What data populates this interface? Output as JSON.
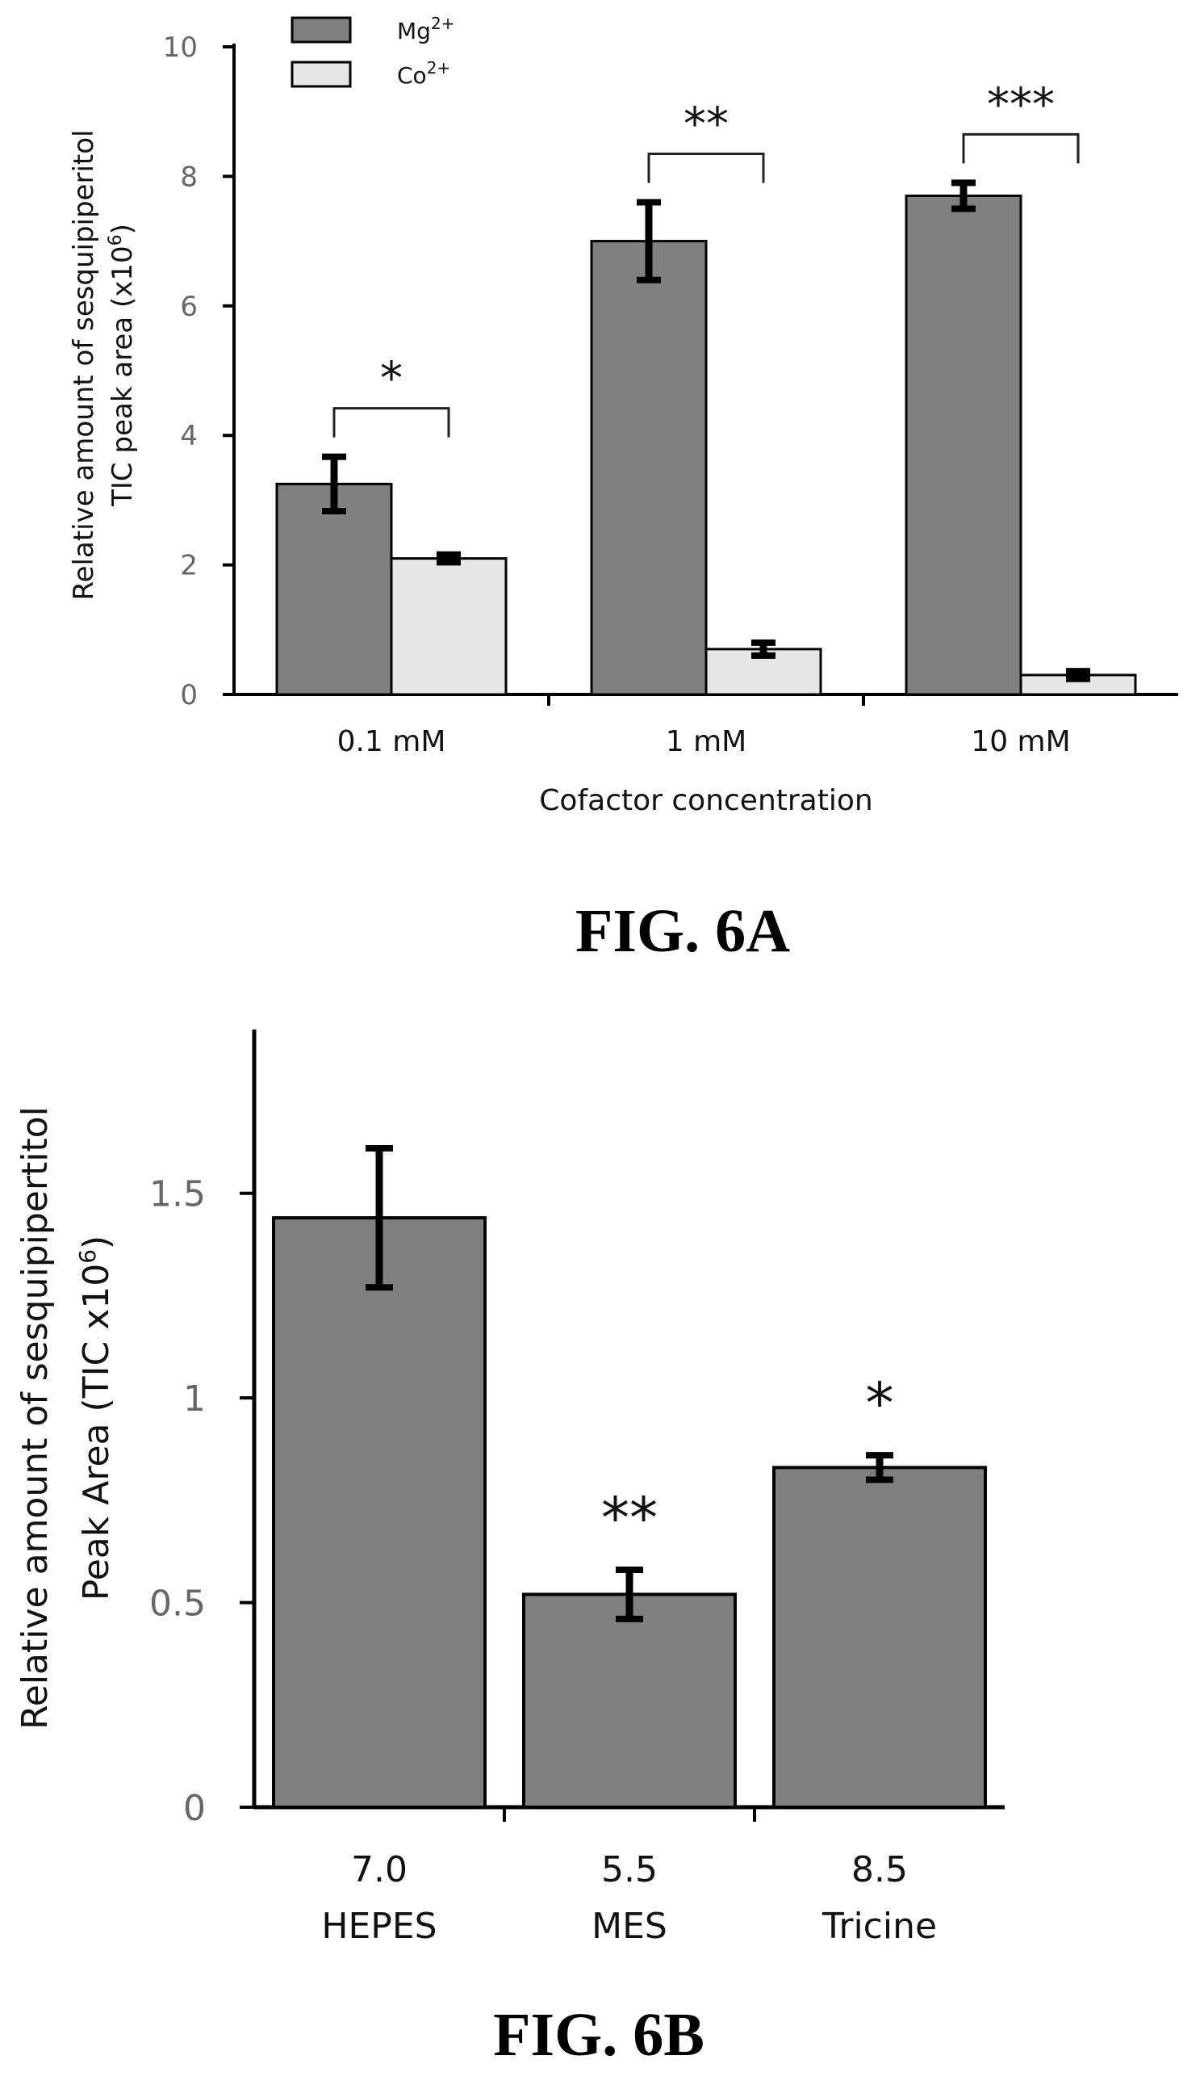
{
  "chart_data": [
    {
      "type": "bar",
      "figure_label": "FIG. 6A",
      "xlabel": "Cofactor concentration",
      "ylabel": [
        "Relative amount of  sesquipiperitol",
        "TIC peak area (x10",
        "6",
        ")"
      ],
      "ylim": [
        0,
        10
      ],
      "yticks": [
        "0",
        "2",
        "4",
        "6",
        "8",
        "10"
      ],
      "grid": false,
      "legend_position": "top-left",
      "categories": [
        "0.1 mM",
        "1 mM",
        "10 mM"
      ],
      "series": [
        {
          "name": "Mg",
          "sup": "2+",
          "color": "#808080",
          "values": [
            3.25,
            7.0,
            7.7
          ],
          "errors": [
            0.42,
            0.6,
            0.2
          ]
        },
        {
          "name": "Co",
          "sup": "2+",
          "color": "#e6e6e6",
          "values": [
            2.1,
            0.7,
            0.3
          ],
          "errors": [
            0.06,
            0.1,
            0.06
          ]
        }
      ],
      "significance": [
        "*",
        "**",
        "***"
      ]
    },
    {
      "type": "bar",
      "figure_label": "FIG. 6B",
      "ylabel": [
        "Relative amount of sesquipipertitol",
        "Peak Area (TIC x10",
        "6",
        ")"
      ],
      "ylim": [
        0,
        1.9
      ],
      "yticks": [
        "0",
        "0.5",
        "1",
        "1.5"
      ],
      "grid": false,
      "categories": [
        "7.0",
        "5.5",
        "8.5"
      ],
      "category_sublabels": [
        "HEPES",
        "MES",
        "Tricine"
      ],
      "series": [
        {
          "color": "#808080",
          "values": [
            1.44,
            0.52,
            0.83
          ],
          "errors": [
            0.17,
            0.06,
            0.03
          ]
        }
      ],
      "significance": [
        "",
        "**",
        "*"
      ]
    }
  ]
}
